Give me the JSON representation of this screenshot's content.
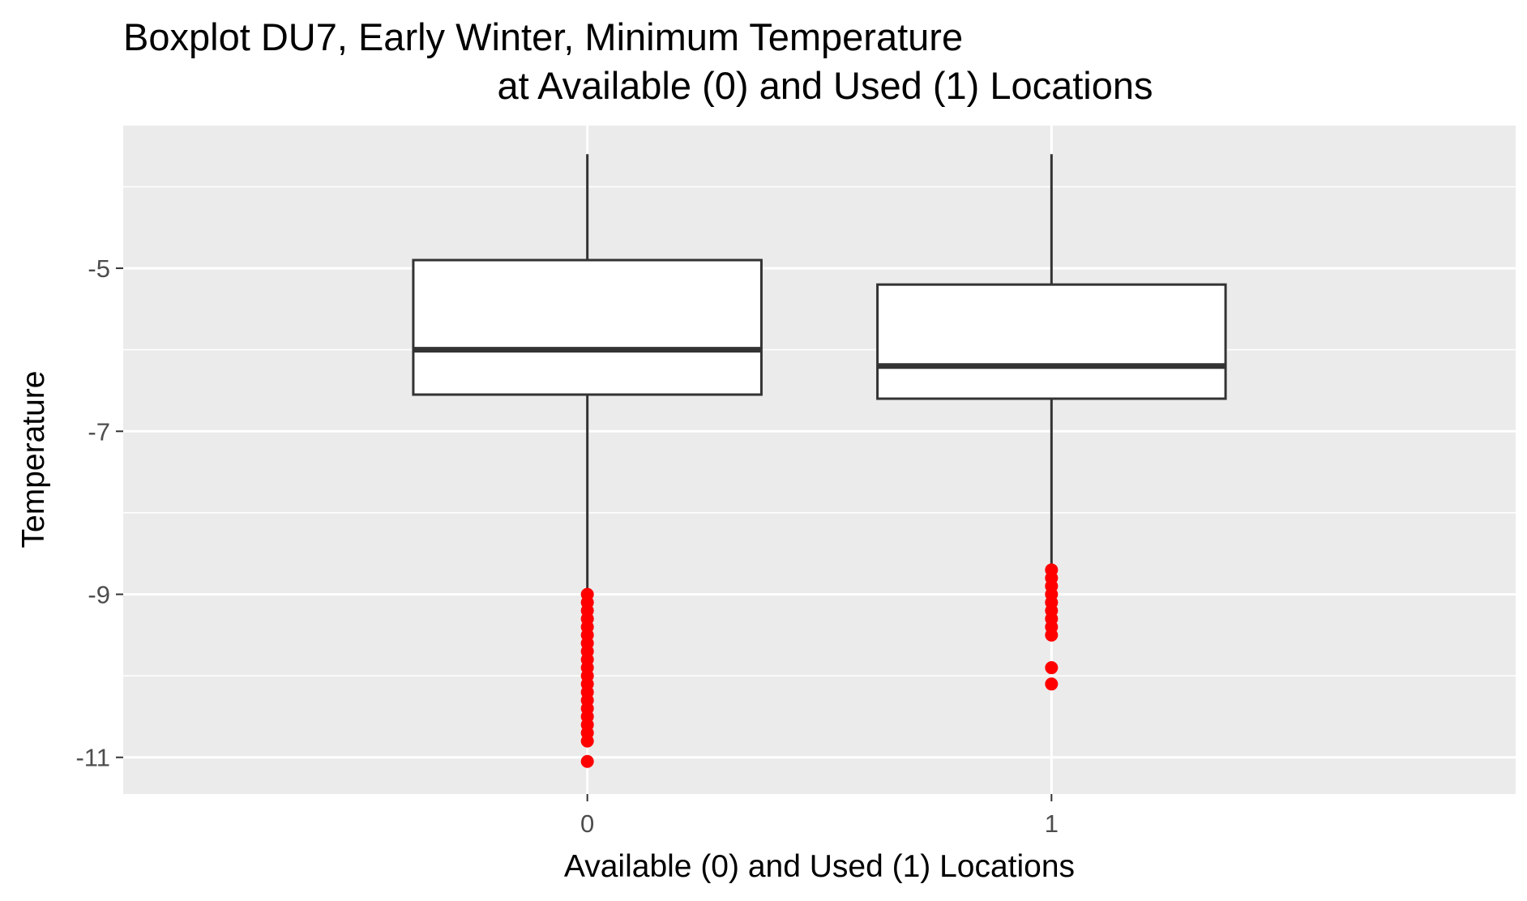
{
  "chart_data": {
    "type": "boxplot",
    "title_line1": "Boxplot DU7, Early Winter, Minimum Temperature",
    "title_line2": "at Available (0) and Used (1) Locations",
    "xlabel": "Available (0) and Used (1) Locations",
    "ylabel": "Temperature",
    "categories": [
      "0",
      "1"
    ],
    "y_ticks": [
      -5,
      -7,
      -9,
      -11
    ],
    "y_tick_labels": [
      "-5",
      "-7",
      "-9",
      "-11"
    ],
    "ylim": [
      -11.45,
      -3.25
    ],
    "grid": true,
    "colors": {
      "panel_background": "#ebebeb",
      "grid_line": "#ffffff",
      "box_fill": "#ffffff",
      "box_outline": "#333333",
      "outlier": "#ff0000"
    },
    "series": [
      {
        "category": "0",
        "whisker_low": -8.95,
        "q1": -6.55,
        "median": -6.0,
        "q3": -4.9,
        "whisker_high": -3.6,
        "outliers": [
          -9.0,
          -9.1,
          -9.2,
          -9.3,
          -9.4,
          -9.5,
          -9.6,
          -9.7,
          -9.8,
          -9.9,
          -10.0,
          -10.1,
          -10.2,
          -10.3,
          -10.4,
          -10.5,
          -10.6,
          -10.7,
          -10.8,
          -11.05
        ]
      },
      {
        "category": "1",
        "whisker_low": -8.7,
        "q1": -6.6,
        "median": -6.2,
        "q3": -5.2,
        "whisker_high": -3.6,
        "outliers": [
          -8.7,
          -8.8,
          -8.9,
          -9.0,
          -9.1,
          -9.2,
          -9.3,
          -9.4,
          -9.5,
          -9.9,
          -10.1
        ]
      }
    ]
  }
}
